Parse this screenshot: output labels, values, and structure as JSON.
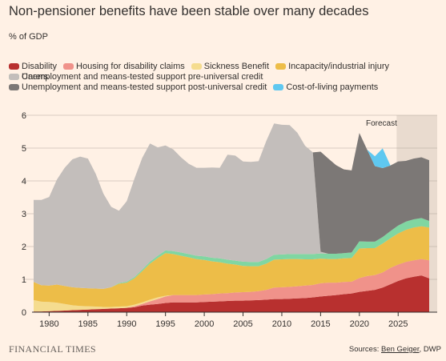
{
  "title": "Non-pensioner benefits have been stable over many decades",
  "unit_label": "% of GDP",
  "forecast_label": "Forecast",
  "brand": "FINANCIAL TIMES",
  "source_prefix": "Sources: ",
  "source_link": "Ben Geiger",
  "source_suffix": ", DWP",
  "colors": {
    "background": "#FFF1E5",
    "grid": "#D9CCC1",
    "axis": "#33302E",
    "forecast_shade": "rgba(175,160,150,0.28)"
  },
  "chart_data": {
    "type": "area",
    "stacked": true,
    "xlim": [
      1978,
      2029
    ],
    "ylim": [
      0,
      6
    ],
    "yticks": [
      "0",
      "1",
      "2",
      "3",
      "4",
      "5",
      "6"
    ],
    "xticks": [
      "1980",
      "1985",
      "1990",
      "1995",
      "2000",
      "2005",
      "2010",
      "2015",
      "2020",
      "2025"
    ],
    "forecast_start": 2024.8,
    "grid": true,
    "legend_rows": [
      [
        "Disability",
        "Housing for disability claims",
        "Sickness Benefit",
        "Incapacity/industrial injury",
        "Carers"
      ],
      [
        "Unemployment and means-tested support pre-universal credit"
      ],
      [
        "Unemployment and means-tested support post-universal credit",
        "Cost-of-living payments"
      ]
    ],
    "x": [
      1978,
      1979,
      1980,
      1981,
      1982,
      1983,
      1984,
      1985,
      1986,
      1987,
      1988,
      1989,
      1990,
      1991,
      1992,
      1993,
      1994,
      1995,
      1996,
      1997,
      1998,
      1999,
      2000,
      2001,
      2002,
      2003,
      2004,
      2005,
      2006,
      2007,
      2008,
      2009,
      2010,
      2011,
      2012,
      2013,
      2014,
      2015,
      2016,
      2017,
      2018,
      2019,
      2020,
      2021,
      2022,
      2023,
      2024,
      2025,
      2026,
      2027,
      2028,
      2029
    ],
    "series": [
      {
        "name": "Disability",
        "color": "#B8302F",
        "values": [
          0.02,
          0.02,
          0.03,
          0.04,
          0.05,
          0.06,
          0.07,
          0.08,
          0.09,
          0.1,
          0.11,
          0.12,
          0.13,
          0.15,
          0.2,
          0.23,
          0.25,
          0.28,
          0.3,
          0.3,
          0.3,
          0.3,
          0.31,
          0.32,
          0.33,
          0.34,
          0.35,
          0.35,
          0.36,
          0.37,
          0.38,
          0.4,
          0.4,
          0.41,
          0.42,
          0.43,
          0.45,
          0.48,
          0.5,
          0.52,
          0.55,
          0.57,
          0.62,
          0.65,
          0.68,
          0.75,
          0.85,
          0.95,
          1.03,
          1.08,
          1.12,
          1.03
        ]
      },
      {
        "name": "Housing for disability claims",
        "color": "#F0928A",
        "values": [
          0,
          0,
          0,
          0,
          0,
          0,
          0,
          0,
          0,
          0,
          0,
          0,
          0,
          0.03,
          0.05,
          0.1,
          0.15,
          0.2,
          0.22,
          0.22,
          0.22,
          0.22,
          0.23,
          0.23,
          0.24,
          0.24,
          0.25,
          0.26,
          0.26,
          0.27,
          0.3,
          0.35,
          0.36,
          0.36,
          0.37,
          0.38,
          0.38,
          0.4,
          0.4,
          0.38,
          0.37,
          0.36,
          0.42,
          0.45,
          0.45,
          0.46,
          0.5,
          0.5,
          0.5,
          0.5,
          0.5,
          0.55
        ]
      },
      {
        "name": "Sickness Benefit",
        "color": "#F5DC8F",
        "values": [
          0.35,
          0.3,
          0.28,
          0.25,
          0.2,
          0.15,
          0.12,
          0.1,
          0.08,
          0.06,
          0.05,
          0.05,
          0.05,
          0.05,
          0.05,
          0.05,
          0.05,
          0.02,
          0,
          0,
          0,
          0,
          0,
          0,
          0,
          0,
          0,
          0,
          0,
          0,
          0,
          0,
          0,
          0,
          0,
          0,
          0,
          0,
          0,
          0,
          0,
          0,
          0,
          0,
          0,
          0,
          0,
          0,
          0,
          0,
          0,
          0
        ]
      },
      {
        "name": "Incapacity/industrial injury",
        "color": "#EDBD48",
        "values": [
          0.55,
          0.5,
          0.5,
          0.55,
          0.55,
          0.55,
          0.55,
          0.55,
          0.55,
          0.55,
          0.6,
          0.7,
          0.72,
          0.8,
          0.95,
          1.1,
          1.2,
          1.3,
          1.25,
          1.2,
          1.15,
          1.1,
          1.05,
          1.0,
          0.95,
          0.9,
          0.85,
          0.8,
          0.78,
          0.76,
          0.8,
          0.85,
          0.85,
          0.85,
          0.83,
          0.8,
          0.78,
          0.75,
          0.72,
          0.72,
          0.72,
          0.72,
          0.9,
          0.85,
          0.82,
          0.88,
          0.9,
          0.95,
          0.98,
          1.0,
          1.0,
          1.0
        ]
      },
      {
        "name": "Carers",
        "color": "#80D6A2",
        "values": [
          0,
          0,
          0,
          0,
          0,
          0,
          0,
          0,
          0,
          0,
          0,
          0.02,
          0.03,
          0.04,
          0.05,
          0.06,
          0.07,
          0.08,
          0.09,
          0.1,
          0.1,
          0.1,
          0.11,
          0.11,
          0.12,
          0.12,
          0.12,
          0.13,
          0.13,
          0.13,
          0.14,
          0.15,
          0.15,
          0.15,
          0.15,
          0.16,
          0.16,
          0.16,
          0.16,
          0.16,
          0.16,
          0.17,
          0.22,
          0.2,
          0.2,
          0.2,
          0.22,
          0.24,
          0.25,
          0.25,
          0.25,
          0.2
        ]
      },
      {
        "name": "Unemployment and means-tested support pre-universal credit",
        "color": "#C3BEBB",
        "values": [
          2.5,
          2.6,
          2.7,
          3.2,
          3.6,
          3.9,
          4.0,
          3.95,
          3.5,
          2.9,
          2.45,
          2.2,
          2.45,
          3.0,
          3.4,
          3.6,
          3.3,
          3.2,
          3.1,
          2.9,
          2.75,
          2.68,
          2.7,
          2.75,
          2.76,
          3.2,
          3.2,
          3.05,
          3.05,
          3.07,
          3.6,
          4.0,
          3.95,
          3.93,
          3.7,
          3.3,
          3.1,
          0.05,
          0,
          0,
          0,
          0,
          0,
          0,
          0,
          0,
          0,
          0,
          0,
          0,
          0,
          0
        ]
      },
      {
        "name": "Unemployment and means-tested support post-universal credit",
        "color": "#7C7876",
        "values": [
          0,
          0,
          0,
          0,
          0,
          0,
          0,
          0,
          0,
          0,
          0,
          0,
          0,
          0,
          0,
          0,
          0,
          0,
          0,
          0,
          0,
          0,
          0,
          0,
          0,
          0,
          0,
          0,
          0,
          0,
          0,
          0,
          0,
          0,
          0,
          0,
          0,
          3.05,
          2.9,
          2.7,
          2.55,
          2.5,
          3.3,
          2.8,
          2.3,
          2.1,
          2.0,
          1.95,
          1.85,
          1.85,
          1.85,
          1.85
        ]
      },
      {
        "name": "Cost-of-living payments",
        "color": "#5FC8F0",
        "values": [
          0,
          0,
          0,
          0,
          0,
          0,
          0,
          0,
          0,
          0,
          0,
          0,
          0,
          0,
          0,
          0,
          0,
          0,
          0,
          0,
          0,
          0,
          0,
          0,
          0,
          0,
          0,
          0,
          0,
          0,
          0,
          0,
          0,
          0,
          0,
          0,
          0,
          0,
          0,
          0,
          0,
          0,
          0,
          0,
          0.3,
          0.6,
          0,
          0,
          0,
          0,
          0,
          0
        ]
      }
    ]
  }
}
